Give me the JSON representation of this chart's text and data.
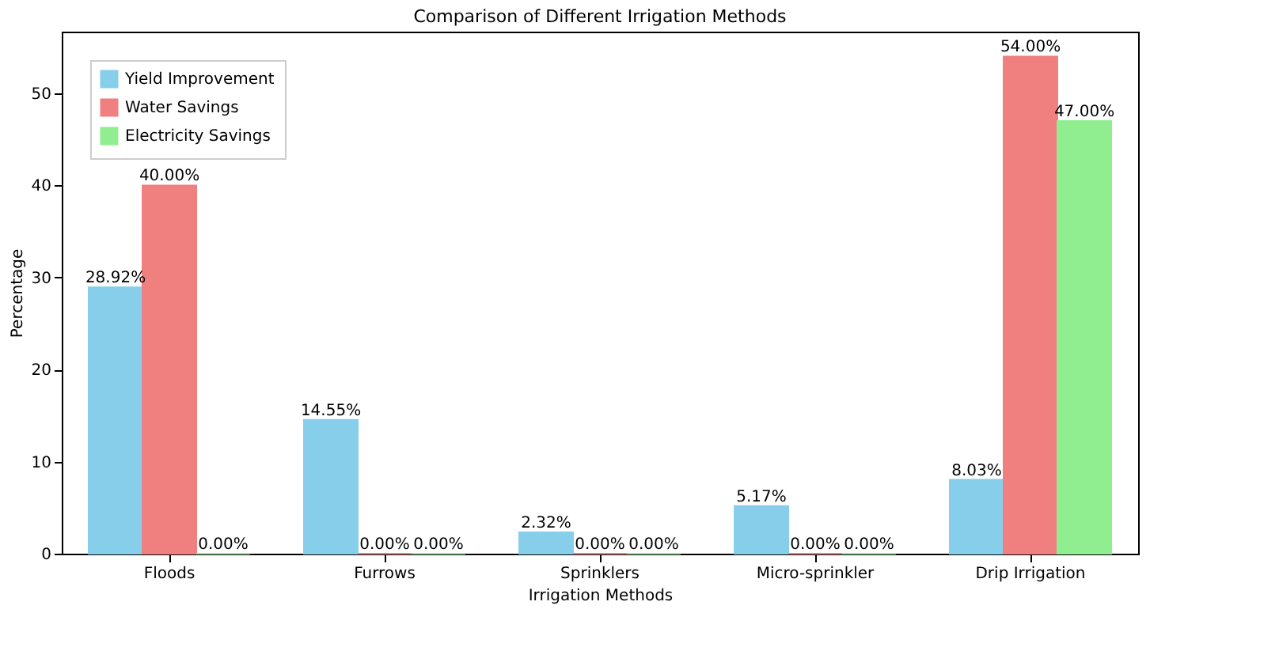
{
  "chart_data": {
    "type": "bar",
    "title": "Comparison of Different Irrigation Methods",
    "xlabel": "Irrigation Methods",
    "ylabel": "Percentage",
    "categories": [
      "Floods",
      "Furrows",
      "Sprinklers",
      "Micro-sprinkler",
      "Drip Irrigation"
    ],
    "series": [
      {
        "name": "Yield Improvement",
        "color": "#87ceeb",
        "values": [
          28.92,
          14.55,
          2.32,
          5.17,
          8.03
        ],
        "value_labels": [
          "28.92%",
          "14.55%",
          "2.32%",
          "5.17%",
          "8.03%"
        ]
      },
      {
        "name": "Water Savings",
        "color": "#f08080",
        "values": [
          40.0,
          0.0,
          0.0,
          0.0,
          54.0
        ],
        "value_labels": [
          "40.00%",
          "0.00%",
          "0.00%",
          "0.00%",
          "54.00%"
        ]
      },
      {
        "name": "Electricity Savings",
        "color": "#90ee90",
        "values": [
          0.0,
          0.0,
          0.0,
          0.0,
          47.0
        ],
        "value_labels": [
          "0.00%",
          "0.00%",
          "0.00%",
          "0.00%",
          "47.00%"
        ]
      }
    ],
    "ylim": [
      0,
      56.7
    ],
    "yticks": [
      0,
      10,
      20,
      30,
      40,
      50
    ],
    "grid": false,
    "legend": "top left"
  }
}
